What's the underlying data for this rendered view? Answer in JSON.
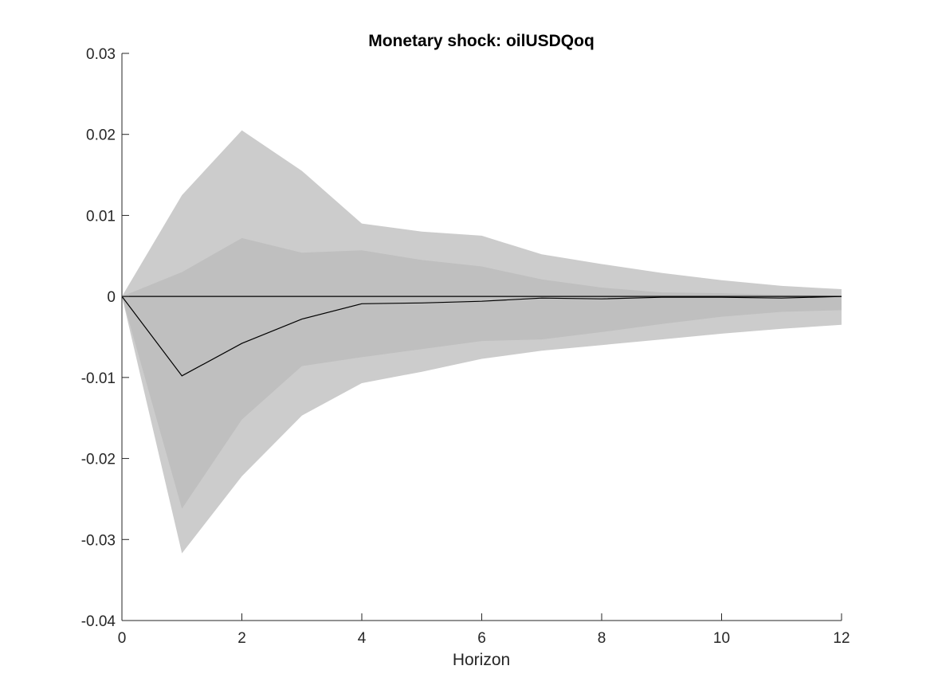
{
  "chart_data": {
    "type": "area",
    "title": "Monetary shock: oilUSDQoq",
    "xlabel": "Horizon",
    "ylabel": "",
    "xlim": [
      0,
      12
    ],
    "ylim": [
      -0.04,
      0.03
    ],
    "xticks": [
      0,
      2,
      4,
      6,
      8,
      10,
      12
    ],
    "xtick_labels": [
      "0",
      "2",
      "4",
      "6",
      "8",
      "10",
      "12"
    ],
    "yticks": [
      0.03,
      0.02,
      0.01,
      0,
      -0.01,
      -0.02,
      -0.03,
      -0.04
    ],
    "ytick_labels": [
      "0.03",
      "0.02",
      "0.01",
      "0",
      "-0.01",
      "-0.02",
      "-0.03",
      "-0.04"
    ],
    "grid": false,
    "x": [
      0,
      1,
      2,
      3,
      4,
      5,
      6,
      7,
      8,
      9,
      10,
      11,
      12
    ],
    "outer_band": {
      "upper": [
        0,
        0.0125,
        0.0205,
        0.0155,
        0.009,
        0.008,
        0.0075,
        0.0052,
        0.004,
        0.0029,
        0.002,
        0.0013,
        0.0009
      ],
      "lower": [
        0,
        -0.0317,
        -0.0222,
        -0.0147,
        -0.0107,
        -0.0093,
        -0.0077,
        -0.0067,
        -0.006,
        -0.0053,
        -0.0046,
        -0.004,
        -0.0035
      ]
    },
    "inner_band": {
      "upper": [
        0,
        0.003,
        0.0072,
        0.0054,
        0.0057,
        0.0045,
        0.0037,
        0.0021,
        0.0011,
        0.0005,
        0.0004,
        0.0002,
        0.0001
      ],
      "lower": [
        0,
        -0.0262,
        -0.0152,
        -0.0086,
        -0.0075,
        -0.0065,
        -0.0055,
        -0.0053,
        -0.0044,
        -0.0034,
        -0.0025,
        -0.0019,
        -0.0017
      ]
    },
    "median": [
      0,
      -0.0098,
      -0.0058,
      -0.0028,
      -0.0009,
      -0.0008,
      -0.0006,
      -0.0002,
      -0.0003,
      -0.0001,
      -0.0001,
      -0.0002,
      0
    ],
    "zero_line": 0,
    "colors": {
      "outer_band": "#cccccc",
      "inner_band": "#bfbfbf",
      "median": "#000000",
      "zero_line": "#000000",
      "axis": "#262626"
    }
  }
}
